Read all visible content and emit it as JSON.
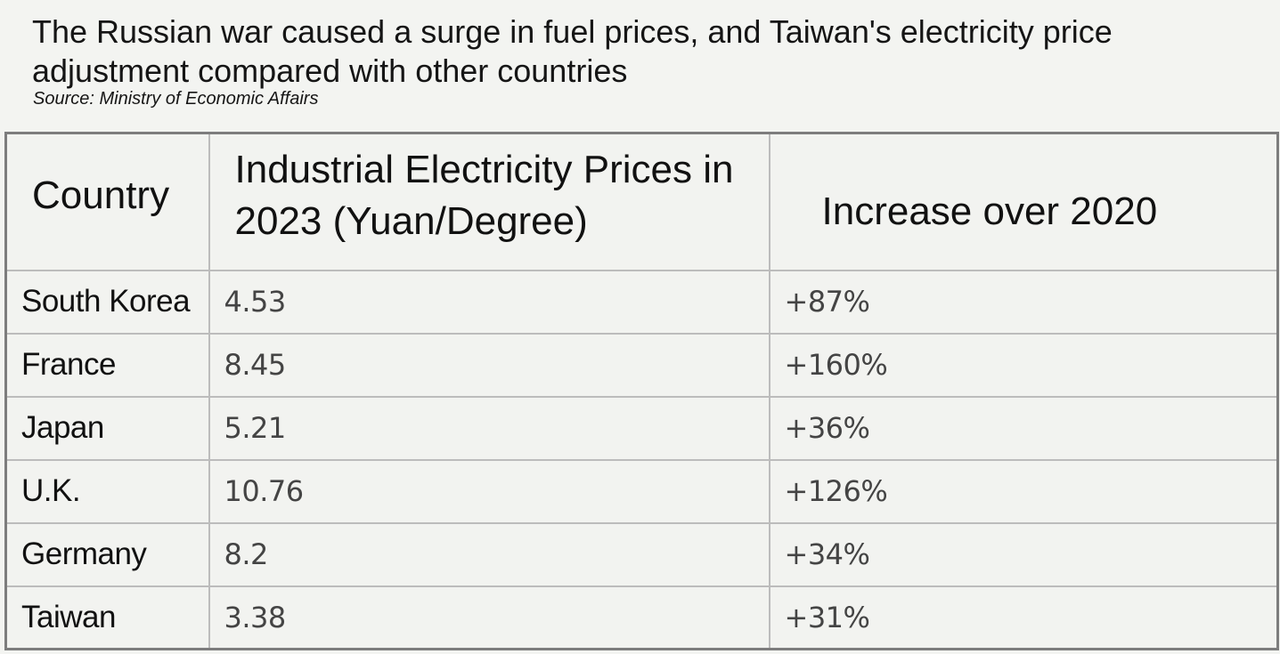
{
  "title": "The Russian war caused a surge in fuel prices, and Taiwan's electricity price adjustment compared with other countries",
  "source": "Source: Ministry of Economic Affairs",
  "chart_data": {
    "type": "table",
    "title": "The Russian war caused a surge in fuel prices, and Taiwan's electricity price adjustment compared with other countries",
    "subtitle": "Source: Ministry of Economic Affairs",
    "columns": [
      "Country",
      "Industrial Electricity Prices in 2023 (Yuan/Degree)",
      "Increase over 2020"
    ],
    "rows": [
      {
        "country": "South Korea",
        "price": "4.53",
        "increase": "+87%"
      },
      {
        "country": "France",
        "price": "8.45",
        "increase": "+160%"
      },
      {
        "country": "Japan",
        "price": "5.21",
        "increase": "+36%"
      },
      {
        "country": "U.K.",
        "price": "10.76",
        "increase": "+126%"
      },
      {
        "country": "Germany",
        "price": "8.2",
        "increase": "+34%"
      },
      {
        "country": "Taiwan",
        "price": "3.38",
        "increase": "+31%"
      }
    ]
  }
}
